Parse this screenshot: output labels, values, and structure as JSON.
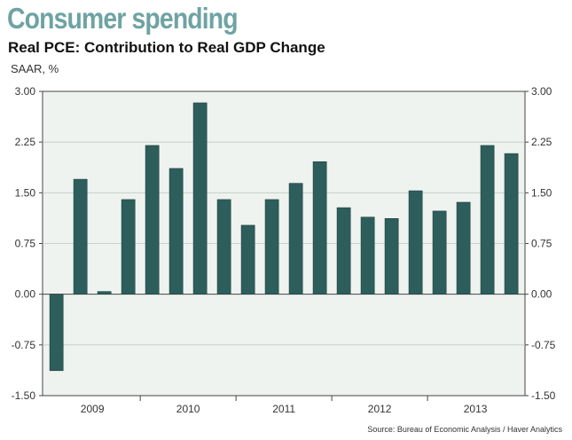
{
  "header": {
    "headline": "Consumer spending",
    "subtitle": "Real PCE: Contribution to Real GDP Change",
    "units": "SAAR, %"
  },
  "source": "Source: Bureau of Economic Analysis / Haver Analytics",
  "colors": {
    "bar": "#2d5e5c",
    "plot_background": "#eef3ef",
    "gridline": "#bfc9c4",
    "axis": "#444444",
    "headline": "#6fa3a3"
  },
  "chart_data": {
    "type": "bar",
    "title": "Real PCE: Contribution to Real GDP Change",
    "ylabel": "SAAR, %",
    "xlabel": "",
    "ylim": [
      -1.5,
      3.0
    ],
    "yticks": [
      "3.00",
      "2.25",
      "1.50",
      "0.75",
      "0.00",
      "-0.75",
      "-1.50"
    ],
    "ytick_values": [
      3.0,
      2.25,
      1.5,
      0.75,
      0.0,
      -0.75,
      -1.5
    ],
    "x_year_labels": [
      "2009",
      "2010",
      "2011",
      "2012",
      "2013"
    ],
    "grid": "horizontal",
    "categories": [
      "2009 Q1",
      "2009 Q2",
      "2009 Q3",
      "2009 Q4",
      "2010 Q1",
      "2010 Q2",
      "2010 Q3",
      "2010 Q4",
      "2011 Q1",
      "2011 Q2",
      "2011 Q3",
      "2011 Q4",
      "2012 Q1",
      "2012 Q2",
      "2012 Q3",
      "2012 Q4",
      "2013 Q1",
      "2013 Q2",
      "2013 Q3",
      "2013 Q4"
    ],
    "values": [
      -1.13,
      1.7,
      0.04,
      1.4,
      2.2,
      1.86,
      2.83,
      1.4,
      1.02,
      1.4,
      1.64,
      1.96,
      1.28,
      1.14,
      1.12,
      1.53,
      1.23,
      1.36,
      2.2,
      2.08
    ]
  }
}
